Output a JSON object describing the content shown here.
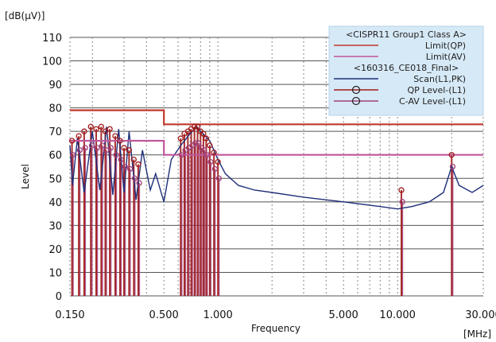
{
  "chart_data": {
    "type": "line",
    "title": "",
    "ylabel": "Level",
    "y_unit": "[dB(μV)]",
    "xlabel": "Frequency",
    "x_unit": "[MHz]",
    "x_scale": "log",
    "xlim": [
      0.15,
      30.0
    ],
    "ylim": [
      0,
      110
    ],
    "x_ticks": [
      {
        "value": 0.15,
        "label": "0.150"
      },
      {
        "value": 0.5,
        "label": "0.500"
      },
      {
        "value": 1.0,
        "label": "1.000"
      },
      {
        "value": 5.0,
        "label": "5.000"
      },
      {
        "value": 10.0,
        "label": "10.000"
      },
      {
        "value": 30.0,
        "label": "30.000"
      }
    ],
    "y_ticks": [
      0,
      10,
      20,
      30,
      40,
      50,
      60,
      70,
      80,
      90,
      100,
      110
    ],
    "grid": true,
    "legend_position": "top-right",
    "legend": {
      "groups": [
        {
          "header": "<CISPR11 Group1 Class A>",
          "entries": [
            {
              "label": "Limit(QP)",
              "color": "#c0392b",
              "marker": "none"
            },
            {
              "label": "Limit(AV)",
              "color": "#c0569a",
              "marker": "none"
            }
          ]
        },
        {
          "header": "<160316_CE018_Final>",
          "entries": [
            {
              "label": "Scan(L1,PK)",
              "color": "#1f2f7a",
              "marker": "none"
            },
            {
              "label": "QP Level-(L1)",
              "color": "#a01818",
              "marker": "circle"
            },
            {
              "label": "C-AV Level-(L1)",
              "color": "#a0407a",
              "marker": "circle"
            }
          ]
        }
      ]
    },
    "series": [
      {
        "name": "Limit(QP)",
        "color": "#c0392b",
        "points": [
          [
            0.15,
            79
          ],
          [
            0.5,
            79
          ],
          [
            0.5,
            73
          ],
          [
            30.0,
            73
          ]
        ]
      },
      {
        "name": "Limit(AV)",
        "color": "#c0569a",
        "points": [
          [
            0.15,
            66
          ],
          [
            0.5,
            66
          ],
          [
            0.5,
            60
          ],
          [
            30.0,
            60
          ]
        ]
      },
      {
        "name": "Scan(L1,PK)",
        "color": "#1f2f7a",
        "points": [
          [
            0.15,
            64
          ],
          [
            0.155,
            47
          ],
          [
            0.165,
            67
          ],
          [
            0.18,
            44
          ],
          [
            0.2,
            70
          ],
          [
            0.22,
            45
          ],
          [
            0.24,
            72
          ],
          [
            0.26,
            43
          ],
          [
            0.28,
            71
          ],
          [
            0.3,
            44
          ],
          [
            0.32,
            70
          ],
          [
            0.35,
            41
          ],
          [
            0.38,
            62
          ],
          [
            0.42,
            45
          ],
          [
            0.45,
            52
          ],
          [
            0.5,
            40
          ],
          [
            0.55,
            58
          ],
          [
            0.62,
            64
          ],
          [
            0.7,
            69
          ],
          [
            0.76,
            72
          ],
          [
            0.8,
            70
          ],
          [
            0.9,
            66
          ],
          [
            1.0,
            58
          ],
          [
            1.1,
            52
          ],
          [
            1.3,
            47
          ],
          [
            1.6,
            45
          ],
          [
            2.0,
            44
          ],
          [
            3.0,
            42
          ],
          [
            5.0,
            40
          ],
          [
            8.0,
            38
          ],
          [
            10.0,
            37
          ],
          [
            12.0,
            38
          ],
          [
            15.0,
            40
          ],
          [
            18.0,
            44
          ],
          [
            20.0,
            55
          ],
          [
            22.0,
            47
          ],
          [
            26.0,
            44
          ],
          [
            30.0,
            47
          ]
        ]
      },
      {
        "name": "QP Level-(L1)",
        "color": "#a01818",
        "x": [
          0.154,
          0.168,
          0.18,
          0.196,
          0.21,
          0.224,
          0.236,
          0.25,
          0.268,
          0.285,
          0.3,
          0.32,
          0.34,
          0.36,
          0.62,
          0.65,
          0.68,
          0.71,
          0.74,
          0.77,
          0.8,
          0.83,
          0.86,
          0.9,
          0.95,
          1.0,
          10.5,
          20.0
        ],
        "y": [
          66,
          68,
          70,
          72,
          71,
          72,
          70,
          71,
          68,
          66,
          63,
          62,
          58,
          56,
          67,
          69,
          70,
          71,
          72,
          72,
          70,
          69,
          67,
          64,
          61,
          57,
          45,
          60
        ]
      },
      {
        "name": "C-AV Level-(L1)",
        "color": "#a0407a",
        "x": [
          0.154,
          0.168,
          0.18,
          0.196,
          0.21,
          0.224,
          0.236,
          0.25,
          0.268,
          0.285,
          0.3,
          0.32,
          0.34,
          0.36,
          0.62,
          0.65,
          0.68,
          0.71,
          0.74,
          0.77,
          0.8,
          0.83,
          0.86,
          0.9,
          0.95,
          1.0,
          10.5,
          20.0
        ],
        "y": [
          60,
          62,
          63,
          64,
          63,
          64,
          62,
          63,
          60,
          58,
          55,
          54,
          50,
          48,
          60,
          62,
          63,
          64,
          65,
          65,
          63,
          62,
          60,
          57,
          54,
          50,
          40,
          55
        ]
      }
    ]
  }
}
